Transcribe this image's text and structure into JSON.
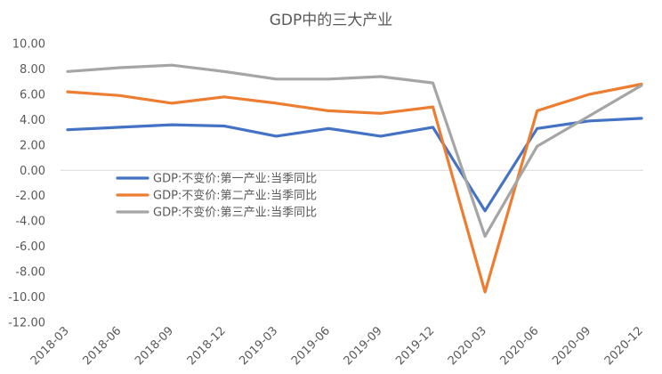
{
  "chart_data": {
    "type": "line",
    "title": "GDP中的三大产业",
    "xlabel": "",
    "ylabel": "",
    "ylim": [
      -12,
      10
    ],
    "yticks": [
      "10.00",
      "8.00",
      "6.00",
      "4.00",
      "2.00",
      "0.00",
      "-2.00",
      "-4.00",
      "-6.00",
      "-8.00",
      "-10.00",
      "-12.00"
    ],
    "categories": [
      "2018-03",
      "2018-06",
      "2018-09",
      "2018-12",
      "2019-03",
      "2019-06",
      "2019-09",
      "2019-12",
      "2020-03",
      "2020-06",
      "2020-09",
      "2020-12"
    ],
    "grid": false,
    "legend_position": "center-left",
    "series": [
      {
        "name": "GDP:不变价:第一产业:当季同比",
        "color": "#4472c4",
        "values": [
          3.2,
          3.4,
          3.6,
          3.5,
          2.7,
          3.3,
          2.7,
          3.4,
          -3.2,
          3.3,
          3.9,
          4.1
        ]
      },
      {
        "name": "GDP:不变价:第二产业:当季同比",
        "color": "#ed7d31",
        "values": [
          6.2,
          5.9,
          5.3,
          5.8,
          5.3,
          4.7,
          4.5,
          5.0,
          -9.6,
          4.7,
          6.0,
          6.8
        ]
      },
      {
        "name": "GDP:不变价:第三产业:当季同比",
        "color": "#a5a5a5",
        "values": [
          7.8,
          8.1,
          8.3,
          7.8,
          7.2,
          7.2,
          7.4,
          6.9,
          -5.2,
          1.9,
          4.3,
          6.7
        ]
      }
    ]
  }
}
